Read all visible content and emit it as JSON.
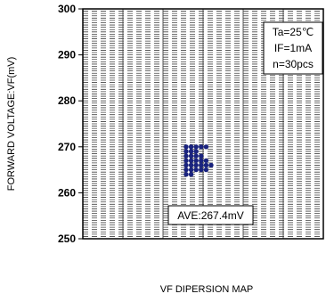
{
  "chart_data": {
    "type": "scatter",
    "title": "",
    "xlabel": "VF DIPERSION MAP",
    "ylabel": "FORWARD VOLTAGE:VF(mV)",
    "ylim": [
      250,
      300
    ],
    "yticks": [
      250,
      260,
      270,
      280,
      290,
      300
    ],
    "x_categories": 6,
    "grid": true,
    "annotations": {
      "conditions": [
        "Ta=25℃",
        "IF=1mA",
        "n=30pcs"
      ],
      "average": "AVE:267.4mV"
    },
    "series": [
      {
        "color": "#1a237e",
        "points": [
          {
            "col": 0,
            "y": 270
          },
          {
            "col": 1,
            "y": 270
          },
          {
            "col": 2,
            "y": 270
          },
          {
            "col": 3,
            "y": 270
          },
          {
            "col": 4,
            "y": 270
          },
          {
            "col": 0,
            "y": 269
          },
          {
            "col": 1,
            "y": 269
          },
          {
            "col": 2,
            "y": 269
          },
          {
            "col": 0,
            "y": 268
          },
          {
            "col": 1,
            "y": 268
          },
          {
            "col": 2,
            "y": 268
          },
          {
            "col": 3,
            "y": 268
          },
          {
            "col": 0,
            "y": 267
          },
          {
            "col": 1,
            "y": 267
          },
          {
            "col": 2,
            "y": 267
          },
          {
            "col": 3,
            "y": 267
          },
          {
            "col": 4,
            "y": 267
          },
          {
            "col": 0,
            "y": 266
          },
          {
            "col": 1,
            "y": 266
          },
          {
            "col": 2,
            "y": 266
          },
          {
            "col": 3,
            "y": 266
          },
          {
            "col": 4,
            "y": 266
          },
          {
            "col": 5,
            "y": 266
          },
          {
            "col": 0,
            "y": 265
          },
          {
            "col": 1,
            "y": 265
          },
          {
            "col": 2,
            "y": 265
          },
          {
            "col": 3,
            "y": 265
          },
          {
            "col": 4,
            "y": 265
          },
          {
            "col": 0,
            "y": 264
          },
          {
            "col": 1,
            "y": 264
          }
        ]
      }
    ]
  }
}
